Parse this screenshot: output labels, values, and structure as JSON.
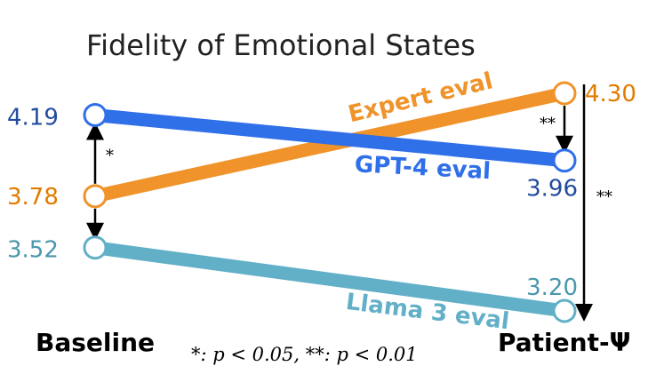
{
  "chart_data": {
    "type": "line",
    "title": "Fidelity of Emotional States",
    "categories": [
      "Baseline",
      "Patient-Ψ"
    ],
    "series": [
      {
        "name": "Expert eval",
        "values": [
          3.78,
          4.3
        ],
        "color": "#f0932b",
        "value_labels": [
          "3.78",
          "4.30"
        ],
        "label_color": "#e07b00"
      },
      {
        "name": "GPT-4 eval",
        "values": [
          4.19,
          3.96
        ],
        "color": "#2f6fe8",
        "value_labels": [
          "4.19",
          "3.96"
        ],
        "label_color": "#234c9e"
      },
      {
        "name": "Llama 3 eval",
        "values": [
          3.52,
          3.2
        ],
        "color": "#62b0c8",
        "value_labels": [
          "3.52",
          "3.20"
        ],
        "label_color": "#4b97ae"
      }
    ],
    "significance": [
      {
        "from": "Expert eval",
        "to": "GPT-4 eval",
        "at": "Baseline",
        "mark": "*"
      },
      {
        "from": "Expert eval",
        "to": "Llama 3 eval",
        "at": "Baseline",
        "mark": ""
      },
      {
        "from": "Expert eval",
        "to": "GPT-4 eval",
        "at": "Patient-Ψ",
        "mark": "**"
      },
      {
        "from": "Expert eval",
        "to": "Llama 3 eval",
        "at": "Patient-Ψ",
        "mark": "**"
      }
    ],
    "footnote": "*: p < 0.05, **: p < 0.01"
  }
}
